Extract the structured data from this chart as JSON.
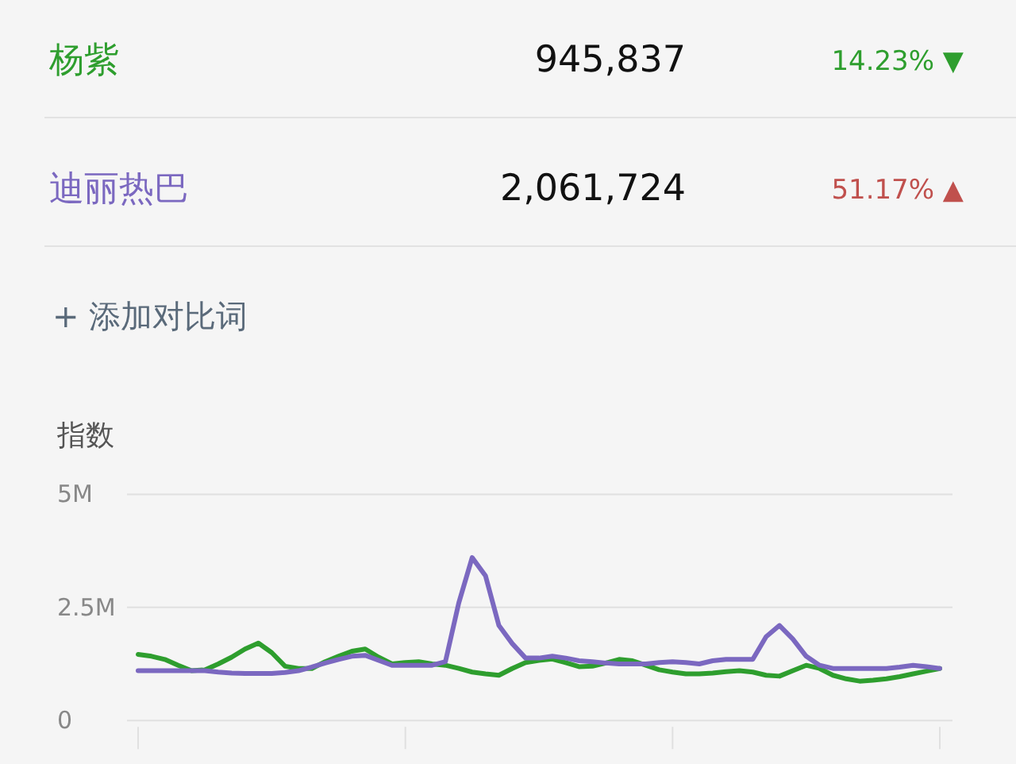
{
  "chart_data": {
    "type": "line",
    "ylabel": "指数",
    "categories": [
      null,
      null,
      null,
      null,
      null,
      null,
      null,
      null,
      null,
      null,
      null,
      null,
      null,
      null,
      null,
      null,
      null,
      null,
      null,
      null,
      null,
      null,
      null,
      null,
      null,
      null,
      null,
      null,
      null,
      null,
      null,
      null,
      null,
      null,
      null,
      null,
      null,
      null,
      null,
      null,
      null,
      null,
      null,
      null,
      null,
      null,
      null,
      null,
      null,
      null,
      null,
      null,
      null,
      null,
      null,
      null,
      null,
      null,
      null,
      null,
      null
    ],
    "ylim": [
      0,
      5000000
    ],
    "yticks": [
      {
        "value": 0,
        "label": "0"
      },
      {
        "value": 2500000,
        "label": "2.5M"
      },
      {
        "value": 5000000,
        "label": "5M"
      }
    ],
    "grid": "y",
    "series": [
      {
        "name": "杨紫",
        "color": "#2e9e2e",
        "values": [
          1460000,
          1420000,
          1350000,
          1220000,
          1100000,
          1120000,
          1250000,
          1400000,
          1580000,
          1710000,
          1500000,
          1200000,
          1150000,
          1150000,
          1300000,
          1420000,
          1530000,
          1580000,
          1400000,
          1250000,
          1280000,
          1300000,
          1250000,
          1220000,
          1150000,
          1070000,
          1030000,
          1000000,
          1150000,
          1280000,
          1330000,
          1360000,
          1280000,
          1190000,
          1200000,
          1270000,
          1350000,
          1320000,
          1220000,
          1120000,
          1070000,
          1030000,
          1030000,
          1050000,
          1080000,
          1100000,
          1070000,
          1000000,
          980000,
          1100000,
          1220000,
          1150000,
          1000000,
          920000,
          870000,
          890000,
          920000,
          970000,
          1030000,
          1090000,
          1150000
        ]
      },
      {
        "name": "迪丽热巴",
        "color": "#7b68c0",
        "values": [
          1100000,
          1100000,
          1100000,
          1100000,
          1100000,
          1100000,
          1070000,
          1050000,
          1040000,
          1040000,
          1040000,
          1060000,
          1100000,
          1180000,
          1270000,
          1350000,
          1420000,
          1440000,
          1330000,
          1220000,
          1220000,
          1220000,
          1220000,
          1300000,
          2600000,
          3600000,
          3200000,
          2100000,
          1700000,
          1380000,
          1380000,
          1420000,
          1380000,
          1320000,
          1300000,
          1270000,
          1250000,
          1250000,
          1250000,
          1280000,
          1300000,
          1280000,
          1250000,
          1320000,
          1350000,
          1350000,
          1350000,
          1850000,
          2100000,
          1800000,
          1420000,
          1220000,
          1150000,
          1150000,
          1150000,
          1150000,
          1150000,
          1180000,
          1220000,
          1190000,
          1150000
        ]
      }
    ],
    "annotations": [
      "945,837",
      "14.23% ▼",
      "2,061,724",
      "51.17% ▲",
      "+ 添加对比词"
    ]
  }
}
